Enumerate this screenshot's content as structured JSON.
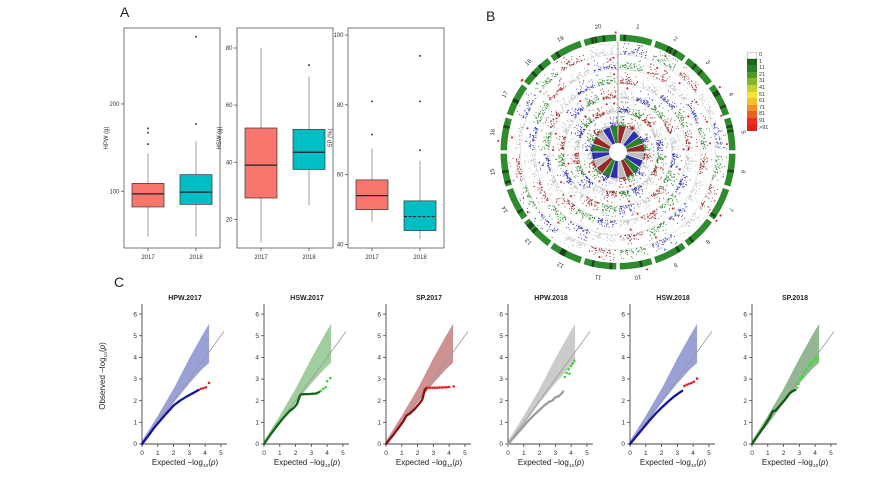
{
  "panel_labels": {
    "a": "A",
    "b": "B",
    "c": "C"
  },
  "qq_shared": {
    "xlabel": "Expected −log10(p)",
    "ylabel": "Observed −log10(p)",
    "diagonal_color": "#999999",
    "band": {
      "upper": [
        [
          0,
          0.15
        ],
        [
          1,
          1.3
        ],
        [
          2,
          2.55
        ],
        [
          3,
          3.95
        ],
        [
          3.8,
          5.0
        ],
        [
          4.25,
          5.55
        ]
      ],
      "lower": [
        [
          0,
          0.0
        ],
        [
          1,
          0.9
        ],
        [
          2,
          1.9
        ],
        [
          3,
          2.8
        ],
        [
          3.8,
          3.45
        ],
        [
          4.25,
          3.75
        ]
      ]
    }
  },
  "chart_data": {
    "panel_a_boxplots": [
      {
        "type": "box",
        "ylabel": "HPW (g)",
        "categories": [
          "2017",
          "2018"
        ],
        "ylim": [
          35,
          287
        ],
        "yticks": [
          100,
          200
        ],
        "series": [
          {
            "name": "2017",
            "color": "#F8766D",
            "low": 48,
            "q1": 82,
            "median": 97,
            "q3": 109,
            "high": 143,
            "outliers": [
              154,
              167,
              172
            ],
            "median_style": "solid"
          },
          {
            "name": "2018",
            "color": "#00BFC4",
            "low": 48,
            "q1": 85,
            "median": 99,
            "q3": 119,
            "high": 157,
            "outliers": [
              177,
              277
            ],
            "median_style": "solid"
          }
        ]
      },
      {
        "type": "box",
        "ylabel": "HSW (g)",
        "categories": [
          "2017",
          "2018"
        ],
        "ylim": [
          10,
          87
        ],
        "yticks": [
          20,
          40,
          60,
          80
        ],
        "series": [
          {
            "name": "2017",
            "color": "#F8766D",
            "low": 12,
            "q1": 27.5,
            "median": 39,
            "q3": 52,
            "high": 80,
            "outliers": [],
            "median_style": "solid"
          },
          {
            "name": "2018",
            "color": "#00BFC4",
            "low": 25,
            "q1": 37.5,
            "median": 43.5,
            "q3": 51.5,
            "high": 70,
            "outliers": [
              74
            ],
            "median_style": "solid"
          }
        ]
      },
      {
        "type": "box",
        "ylabel": "SP (%)",
        "categories": [
          "2017",
          "2018"
        ],
        "ylim": [
          39,
          102
        ],
        "yticks": [
          40,
          60,
          80,
          100
        ],
        "series": [
          {
            "name": "2017",
            "color": "#F8766D",
            "low": 46.5,
            "q1": 50,
            "median": 54,
            "q3": 58.5,
            "high": 67.5,
            "outliers": [
              71.5,
              81
            ],
            "median_style": "solid"
          },
          {
            "name": "2018",
            "color": "#00BFC4",
            "low": 41.5,
            "q1": 44,
            "median": 48,
            "q3": 52.5,
            "high": 64,
            "outliers": [
              67,
              81,
              94
            ],
            "median_style": "dashed"
          }
        ]
      }
    ],
    "panel_b_circular": {
      "type": "circular-manhattan",
      "chromosomes": [
        "1",
        "2",
        "3",
        "4",
        "5",
        "6",
        "7",
        "8",
        "9",
        "10",
        "11",
        "12",
        "13",
        "14",
        "15",
        "16",
        "17",
        "18",
        "19",
        "20"
      ],
      "tracks": 6,
      "track_colors": [
        "#2323a8",
        "#1e7a1e",
        "#8f1b1b",
        "#b9b9b9"
      ],
      "highlight_color": "#e62020",
      "ideogram_color": "#2e8b2e",
      "ideogram_band_color": "#173d17",
      "legend": {
        "labels": [
          "0",
          "1",
          "11",
          "21",
          "31",
          "41",
          "51",
          "61",
          "71",
          "81",
          "91",
          ">91"
        ],
        "colors": [
          "#ffffff",
          "#1c641c",
          "#2a7d2a",
          "#4e9a28",
          "#86b42a",
          "#c8d22d",
          "#f2e62e",
          "#f5c02a",
          "#f29126",
          "#ee5f22",
          "#ea2f1e",
          "#e81e1e"
        ]
      }
    },
    "panel_c_qqplots": [
      {
        "type": "qq",
        "title": "HPW.2017",
        "xlim": [
          0,
          5
        ],
        "ylim": [
          0,
          6
        ],
        "xticks": [
          0,
          1,
          2,
          3,
          4,
          5
        ],
        "yticks": [
          0,
          1,
          2,
          3,
          4,
          5,
          6
        ],
        "point_color": "#14149e",
        "band_color": "rgba(120,130,200,0.75)",
        "sig_color": "#e32222",
        "curve": [
          [
            0,
            0
          ],
          [
            0.4,
            0.38
          ],
          [
            0.8,
            0.78
          ],
          [
            1.2,
            1.12
          ],
          [
            1.6,
            1.45
          ],
          [
            2.0,
            1.78
          ],
          [
            2.4,
            2.0
          ],
          [
            2.8,
            2.18
          ],
          [
            3.1,
            2.3
          ],
          [
            3.4,
            2.42
          ],
          [
            3.6,
            2.5
          ]
        ],
        "sig_points": [
          [
            3.75,
            2.55
          ],
          [
            3.9,
            2.58
          ],
          [
            4.05,
            2.62
          ],
          [
            4.25,
            2.82
          ]
        ]
      },
      {
        "type": "qq",
        "title": "HSW.2017",
        "xlim": [
          0,
          5
        ],
        "ylim": [
          0,
          6
        ],
        "xticks": [
          0,
          1,
          2,
          3,
          4,
          5
        ],
        "yticks": [
          0,
          1,
          2,
          3,
          4,
          5,
          6
        ],
        "point_color": "#116611",
        "band_color": "rgba(120,185,120,0.7)",
        "sig_color": "#3ed43e",
        "curve": [
          [
            0,
            0
          ],
          [
            0.4,
            0.42
          ],
          [
            0.8,
            0.82
          ],
          [
            1.2,
            1.18
          ],
          [
            1.6,
            1.5
          ],
          [
            1.9,
            1.68
          ],
          [
            2.1,
            1.85
          ],
          [
            2.3,
            2.28
          ],
          [
            2.5,
            2.3
          ],
          [
            2.9,
            2.31
          ],
          [
            3.3,
            2.33
          ],
          [
            3.5,
            2.4
          ]
        ],
        "sig_points": [
          [
            3.6,
            2.45
          ],
          [
            3.75,
            2.55
          ],
          [
            3.9,
            2.62
          ],
          [
            4.0,
            2.9
          ],
          [
            4.2,
            3.05
          ]
        ]
      },
      {
        "type": "qq",
        "title": "SP.2017",
        "xlim": [
          0,
          5
        ],
        "ylim": [
          0,
          6
        ],
        "xticks": [
          0,
          1,
          2,
          3,
          4,
          5
        ],
        "yticks": [
          0,
          1,
          2,
          3,
          4,
          5,
          6
        ],
        "point_color": "#8b1212",
        "band_color": "rgba(190,110,110,0.75)",
        "sig_color": "#ee2020",
        "curve": [
          [
            0,
            0
          ],
          [
            0.4,
            0.36
          ],
          [
            0.8,
            0.75
          ],
          [
            1.1,
            1.05
          ],
          [
            1.3,
            1.32
          ],
          [
            1.5,
            1.4
          ],
          [
            1.8,
            1.6
          ],
          [
            2.1,
            1.85
          ],
          [
            2.3,
            2.05
          ],
          [
            2.45,
            2.5
          ],
          [
            2.55,
            2.58
          ]
        ],
        "sig_points": [
          [
            2.65,
            2.6
          ],
          [
            2.8,
            2.6
          ],
          [
            2.95,
            2.6
          ],
          [
            3.1,
            2.6
          ],
          [
            3.25,
            2.6
          ],
          [
            3.4,
            2.61
          ],
          [
            3.55,
            2.61
          ],
          [
            3.7,
            2.62
          ],
          [
            3.85,
            2.62
          ],
          [
            4.0,
            2.63
          ],
          [
            4.3,
            2.66
          ]
        ]
      },
      {
        "type": "qq",
        "title": "HPW.2018",
        "xlim": [
          0,
          5
        ],
        "ylim": [
          0,
          6
        ],
        "xticks": [
          0,
          1,
          2,
          3,
          4,
          5
        ],
        "yticks": [
          0,
          1,
          2,
          3,
          4,
          5,
          6
        ],
        "point_color": "#9b9b9b",
        "band_color": "rgba(190,190,190,0.8)",
        "sig_color": "#3ed43e",
        "curve": [
          [
            0,
            0
          ],
          [
            0.4,
            0.33
          ],
          [
            0.8,
            0.66
          ],
          [
            1.2,
            1.0
          ],
          [
            1.6,
            1.3
          ],
          [
            2.0,
            1.58
          ],
          [
            2.3,
            1.78
          ],
          [
            2.6,
            1.95
          ],
          [
            2.8,
            2.0
          ],
          [
            3.0,
            2.15
          ],
          [
            3.2,
            2.2
          ],
          [
            3.35,
            2.3
          ],
          [
            3.5,
            2.42
          ]
        ],
        "sig_points": [
          [
            3.6,
            3.1
          ],
          [
            3.72,
            3.28
          ],
          [
            3.85,
            3.45
          ],
          [
            3.9,
            3.25
          ],
          [
            4.0,
            3.6
          ],
          [
            4.1,
            3.72
          ],
          [
            4.2,
            3.85
          ]
        ]
      },
      {
        "type": "qq",
        "title": "HSW.2018",
        "xlim": [
          0,
          5
        ],
        "ylim": [
          0,
          6
        ],
        "xticks": [
          0,
          1,
          2,
          3,
          4,
          5
        ],
        "yticks": [
          0,
          1,
          2,
          3,
          4,
          5,
          6
        ],
        "point_color": "#14149e",
        "band_color": "rgba(120,130,200,0.75)",
        "sig_color": "#e32222",
        "curve": [
          [
            0,
            0
          ],
          [
            0.4,
            0.35
          ],
          [
            0.8,
            0.7
          ],
          [
            1.2,
            1.05
          ],
          [
            1.6,
            1.38
          ],
          [
            2.0,
            1.68
          ],
          [
            2.4,
            1.95
          ],
          [
            2.8,
            2.2
          ],
          [
            3.1,
            2.35
          ],
          [
            3.3,
            2.45
          ]
        ],
        "sig_points": [
          [
            3.45,
            2.68
          ],
          [
            3.6,
            2.74
          ],
          [
            3.75,
            2.78
          ],
          [
            3.9,
            2.82
          ],
          [
            4.05,
            2.88
          ],
          [
            4.25,
            3.02
          ]
        ]
      },
      {
        "type": "qq",
        "title": "SP.2018",
        "xlim": [
          0,
          5
        ],
        "ylim": [
          0,
          6
        ],
        "xticks": [
          0,
          1,
          2,
          3,
          4,
          5
        ],
        "yticks": [
          0,
          1,
          2,
          3,
          4,
          5,
          6
        ],
        "point_color": "#0f5c0f",
        "band_color": "rgba(120,165,120,0.8)",
        "sig_color": "#2ee62e",
        "curve": [
          [
            0,
            0
          ],
          [
            0.4,
            0.42
          ],
          [
            0.8,
            0.85
          ],
          [
            1.1,
            1.2
          ],
          [
            1.3,
            1.5
          ],
          [
            1.5,
            1.55
          ],
          [
            1.8,
            1.8
          ],
          [
            2.1,
            2.05
          ],
          [
            2.4,
            2.35
          ],
          [
            2.6,
            2.45
          ],
          [
            2.75,
            2.5
          ]
        ],
        "sig_points": [
          [
            2.85,
            2.6
          ],
          [
            2.95,
            2.78
          ],
          [
            3.05,
            3.0
          ],
          [
            3.15,
            3.1
          ],
          [
            3.3,
            3.3
          ],
          [
            3.45,
            3.45
          ],
          [
            3.6,
            3.6
          ],
          [
            3.75,
            3.72
          ],
          [
            3.9,
            3.85
          ],
          [
            4.05,
            3.92
          ],
          [
            4.15,
            3.97
          ]
        ]
      }
    ]
  }
}
